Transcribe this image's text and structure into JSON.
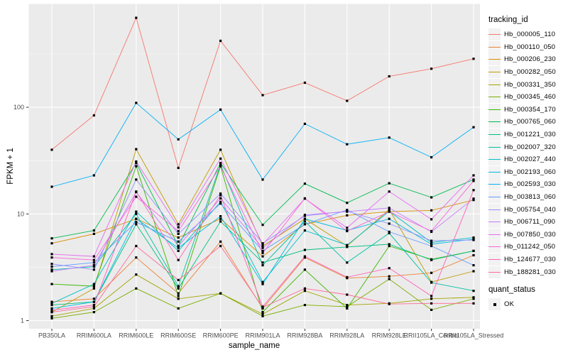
{
  "window": {
    "background": "#FFFFFF"
  },
  "chart_data": {
    "type": "line",
    "title": "",
    "xlabel": "sample_name",
    "ylabel": "FPKM + 1",
    "x_categories": [
      "PB350LA",
      "RRIM600LA",
      "RRIM600LE",
      "RRIM600SE",
      "RRIM600PE",
      "RRIM901LA",
      "RRIM928BA",
      "RRIM928LA",
      "RRIM928LE",
      "RRII105LA_Control",
      "RRII105LA_Stressed"
    ],
    "y_scale": "log10",
    "y_major_ticks": [
      1,
      10,
      100
    ],
    "y_minor_ticks": [
      3.1623,
      31.623,
      316.23
    ],
    "ylim": [
      0.84,
      930
    ],
    "grid": "major-and-minor",
    "legend_position": "right",
    "panel_background": "#EBEBEB",
    "grid_major_color": "#FFFFFF",
    "grid_minor_color": "#FFFFFF",
    "axis_text_color": "#4D4D4D",
    "tick_color": "#333333",
    "point": {
      "shape": "square",
      "color": "#000000",
      "size": 3.2
    },
    "series": [
      {
        "name": "Hb_000005_110",
        "color": "#F8766D",
        "values": [
          40,
          84,
          690,
          27,
          420,
          130,
          170,
          115,
          195,
          230,
          285
        ]
      },
      {
        "name": "Hb_000110_050",
        "color": "#EB8335",
        "values": [
          1.5,
          1.6,
          3.9,
          1.8,
          5.5,
          1.3,
          3.9,
          2.5,
          2.6,
          2.8,
          4.1
        ]
      },
      {
        "name": "Hb_000206_230",
        "color": "#D89000",
        "values": [
          5.3,
          6.5,
          9,
          6,
          9,
          4,
          8,
          9.7,
          10.5,
          10.8,
          13.5
        ]
      },
      {
        "name": "Hb_000282_050",
        "color": "#C09B00",
        "values": [
          1.2,
          2,
          40.5,
          8,
          40,
          5,
          9,
          5,
          11,
          2.3,
          2.9
        ]
      },
      {
        "name": "Hb_000331_350",
        "color": "#A3A500",
        "values": [
          1.1,
          1.3,
          2.7,
          1.6,
          1.8,
          1.15,
          1.9,
          1.4,
          1.45,
          1.6,
          1.65
        ]
      },
      {
        "name": "Hb_000345_460",
        "color": "#7CAE00",
        "values": [
          1.05,
          1.2,
          2,
          1.3,
          1.8,
          1.1,
          1.4,
          1.35,
          2.45,
          1.26,
          1.6
        ]
      },
      {
        "name": "Hb_000354_170",
        "color": "#39B600",
        "values": [
          2.2,
          2.1,
          28,
          1.7,
          28,
          1.2,
          3,
          1.3,
          5,
          3.75,
          4.5
        ]
      },
      {
        "name": "Hb_000765_060",
        "color": "#00BB4E",
        "values": [
          5.9,
          7,
          30,
          5,
          30,
          7.9,
          19.2,
          12.7,
          19.4,
          14.3,
          21
        ]
      },
      {
        "name": "Hb_001221_030",
        "color": "#00BF7D",
        "values": [
          1.4,
          1.5,
          8,
          2,
          8.5,
          3.5,
          4.6,
          4.9,
          5.2,
          3.7,
          4.5
        ]
      },
      {
        "name": "Hb_002007_320",
        "color": "#00C1A3",
        "values": [
          3,
          3.2,
          10,
          2.1,
          29,
          3.3,
          8.5,
          3.5,
          6.6,
          2.27,
          1.9
        ]
      },
      {
        "name": "Hb_002027_440",
        "color": "#00BFC4",
        "values": [
          1.45,
          2.2,
          10.5,
          4.5,
          13,
          2.3,
          7,
          5.1,
          10.6,
          5.4,
          6
        ]
      },
      {
        "name": "Hb_002193_060",
        "color": "#00BAE0",
        "values": [
          1.3,
          1.5,
          9,
          4.8,
          9.5,
          2.2,
          9,
          7,
          9,
          5.2,
          5.8
        ]
      },
      {
        "name": "Hb_002593_030",
        "color": "#00B0F6",
        "values": [
          18,
          23,
          110,
          50,
          95,
          21,
          70,
          45,
          52,
          34,
          65
        ]
      },
      {
        "name": "Hb_003813_060",
        "color": "#619CFF",
        "values": [
          3.2,
          3.5,
          8.4,
          5.5,
          12.5,
          4.5,
          8,
          10.9,
          6.8,
          5,
          3.3
        ]
      },
      {
        "name": "Hb_005754_040",
        "color": "#9590FF",
        "values": [
          3.4,
          3,
          21,
          6.5,
          15.5,
          5.3,
          9.6,
          10.6,
          8.1,
          5.6,
          5.7
        ]
      },
      {
        "name": "Hb_006711_090",
        "color": "#C77CFF",
        "values": [
          2.9,
          3.3,
          16,
          5,
          14,
          4.8,
          9.8,
          10.5,
          11.4,
          6.8,
          13.9
        ]
      },
      {
        "name": "Hb_007850_030",
        "color": "#E76BF3",
        "values": [
          4.2,
          4,
          31,
          7.5,
          33,
          5.2,
          13.9,
          7.4,
          16.2,
          8.9,
          23
        ]
      },
      {
        "name": "Hb_011242_050",
        "color": "#FA62DB",
        "values": [
          3.9,
          3.7,
          14.5,
          6.9,
          28,
          4.3,
          14,
          6.9,
          10.5,
          6.9,
          20.4
        ]
      },
      {
        "name": "Hb_124677_030",
        "color": "#FF62BC",
        "values": [
          1.25,
          1.4,
          16.2,
          3.7,
          15,
          1.35,
          4,
          2.55,
          3.1,
          1.7,
          16.7
        ]
      },
      {
        "name": "Hb_188281_030",
        "color": "#FF6A98",
        "values": [
          1.2,
          1.35,
          5,
          2.4,
          5,
          1.33,
          2,
          1.75,
          1.43,
          1.45,
          1.45
        ]
      }
    ]
  },
  "legend": {
    "tracking_title": "tracking_id",
    "quant_title": "quant_status",
    "key_background": "#F2F2F2",
    "quant_items": [
      {
        "label": "OK",
        "marker": "black-square"
      }
    ]
  }
}
